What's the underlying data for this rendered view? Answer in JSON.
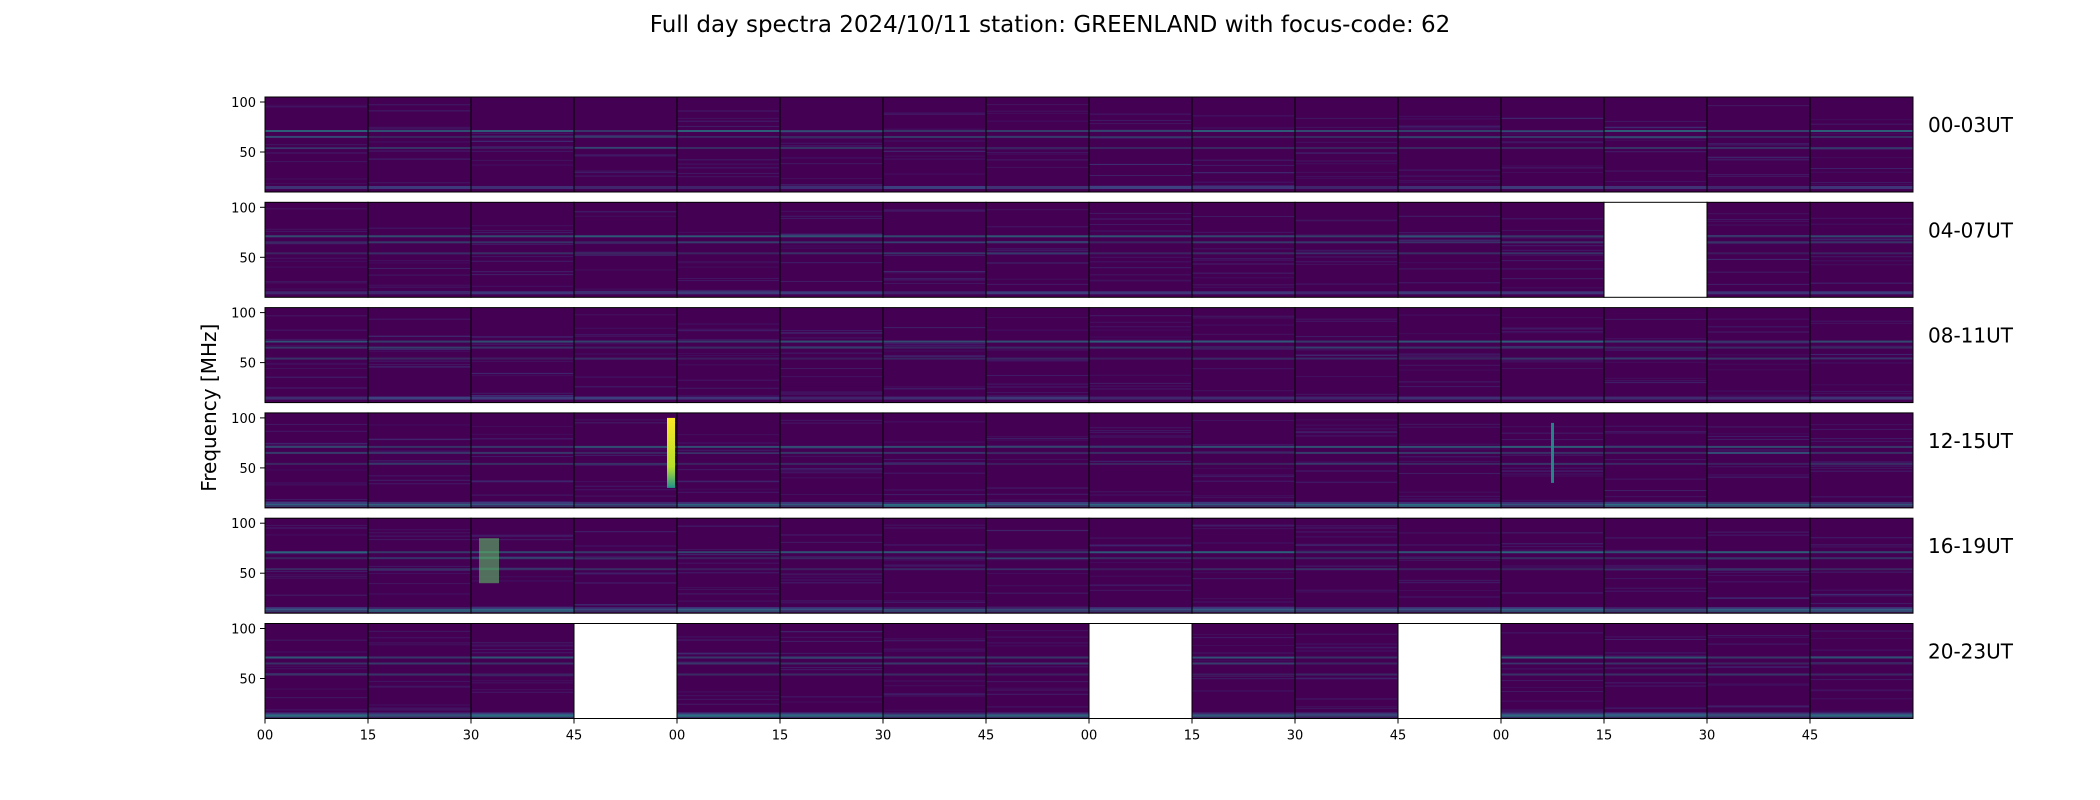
{
  "chart_data": {
    "type": "heatmap",
    "title": "Full day spectra 2024/10/11 station: GREENLAND with focus-code: 62",
    "ylabel": "Frequency [MHz]",
    "xlabel": "",
    "ylim": [
      10,
      105
    ],
    "yticks": [
      50,
      100
    ],
    "xtick_labels": [
      "00",
      "15",
      "30",
      "45",
      "00",
      "15",
      "30",
      "45",
      "00",
      "15",
      "30",
      "45",
      "00",
      "15",
      "30",
      "45"
    ],
    "panels_per_row": 16,
    "panel_minutes": 15,
    "colormap": "viridis",
    "row_labels": [
      "00-03UT",
      "04-07UT",
      "08-11UT",
      "12-15UT",
      "16-19UT",
      "20-23UT"
    ],
    "missing_panels": [
      {
        "row": "04-07UT",
        "panel": 13
      },
      {
        "row": "20-23UT",
        "panel": 3
      },
      {
        "row": "20-23UT",
        "panel": 8
      },
      {
        "row": "20-23UT",
        "panel": 11
      }
    ],
    "notable_bursts": [
      {
        "row": "12-15UT",
        "panel": 3,
        "position": "right edge",
        "freq_range_MHz": [
          30,
          100
        ],
        "intensity": "high"
      },
      {
        "row": "12-15UT",
        "panel": 12,
        "position": "center",
        "freq_range_MHz": [
          35,
          95
        ],
        "intensity": "medium"
      },
      {
        "row": "16-19UT",
        "panel": 2,
        "position": "left",
        "freq_range_MHz": [
          40,
          85
        ],
        "intensity": "medium"
      }
    ],
    "grid": false
  },
  "colors": {
    "background_low": "#440154",
    "band_mid": "#3b528b",
    "band_high": "#21918c",
    "burst_peak": "#fde725",
    "missing": "#ffffff"
  }
}
